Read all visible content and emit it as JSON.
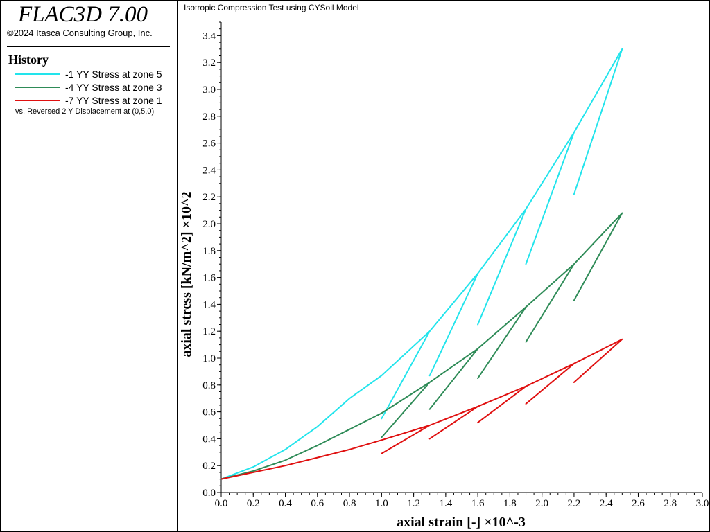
{
  "app": {
    "title": "FLAC3D 7.00",
    "copyright": "©2024 Itasca Consulting Group, Inc."
  },
  "history": {
    "heading": "History",
    "items": [
      {
        "label": "-1 YY Stress at zone 5",
        "color": "#22e4ec"
      },
      {
        "label": "-4 YY Stress at zone 3",
        "color": "#2e8b57"
      },
      {
        "label": "-7 YY Stress at zone 1",
        "color": "#e01010"
      }
    ],
    "vs_label": "vs. Reversed 2 Y Displacement at (0,5,0)"
  },
  "plot": {
    "title": "Isotropic Compression Test using CYSoil Model"
  },
  "chart_data": {
    "type": "line",
    "xlabel": "axial strain [-] ×10^-3",
    "ylabel": "axial stress [kN/m^2] ×10^2",
    "xlim": [
      0,
      3.0
    ],
    "ylim": [
      0,
      3.5
    ],
    "xticks": [
      "0.0",
      "0.2",
      "0.4",
      "0.6",
      "0.8",
      "1.0",
      "1.2",
      "1.4",
      "1.6",
      "1.8",
      "2.0",
      "2.2",
      "2.4",
      "2.6",
      "2.8",
      "3.0"
    ],
    "yticks": [
      "0.0",
      "0.2",
      "0.4",
      "0.6",
      "0.8",
      "1.0",
      "1.2",
      "1.4",
      "1.6",
      "1.8",
      "2.0",
      "2.2",
      "2.4",
      "2.6",
      "2.8",
      "3.0",
      "3.2",
      "3.4"
    ],
    "grid": false,
    "legend": "left panel",
    "series": [
      {
        "name": "-1 YY Stress at zone 5",
        "color": "#22e4ec",
        "x": [
          0.0,
          0.2,
          0.4,
          0.6,
          0.8,
          1.0,
          1.3,
          1.0,
          1.3,
          1.6,
          1.3,
          1.6,
          1.9,
          1.6,
          1.9,
          2.2,
          1.9,
          2.2,
          2.5,
          2.2,
          2.5
        ],
        "y": [
          0.1,
          0.19,
          0.32,
          0.49,
          0.7,
          0.87,
          1.2,
          0.55,
          1.2,
          1.63,
          0.87,
          1.63,
          2.11,
          1.25,
          2.11,
          2.68,
          1.7,
          2.68,
          3.3,
          2.22,
          3.3
        ]
      },
      {
        "name": "-4 YY Stress at zone 3",
        "color": "#2e8b57",
        "x": [
          0.0,
          0.2,
          0.4,
          0.6,
          0.8,
          1.0,
          1.3,
          1.0,
          1.3,
          1.6,
          1.3,
          1.6,
          1.9,
          1.6,
          1.9,
          2.2,
          1.9,
          2.2,
          2.5,
          2.2,
          2.5
        ],
        "y": [
          0.1,
          0.16,
          0.24,
          0.35,
          0.47,
          0.59,
          0.82,
          0.41,
          0.82,
          1.07,
          0.62,
          1.07,
          1.38,
          0.85,
          1.38,
          1.7,
          1.12,
          1.7,
          2.08,
          1.43,
          2.08
        ]
      },
      {
        "name": "-7 YY Stress at zone 1",
        "color": "#e01010",
        "x": [
          0.0,
          0.2,
          0.4,
          0.6,
          0.8,
          1.0,
          1.3,
          1.0,
          1.3,
          1.6,
          1.3,
          1.6,
          1.9,
          1.6,
          1.9,
          2.2,
          1.9,
          2.2,
          2.5,
          2.2,
          2.5
        ],
        "y": [
          0.1,
          0.15,
          0.2,
          0.26,
          0.32,
          0.39,
          0.5,
          0.29,
          0.5,
          0.64,
          0.4,
          0.64,
          0.79,
          0.52,
          0.79,
          0.96,
          0.66,
          0.96,
          1.14,
          0.82,
          1.14
        ]
      }
    ]
  }
}
